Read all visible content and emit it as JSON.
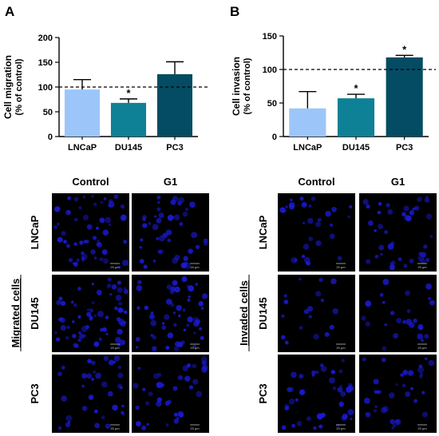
{
  "panels": {
    "a_letter": "A",
    "b_letter": "B"
  },
  "micrographs": {
    "col_control": "Control",
    "col_g1": "G1",
    "rows": [
      "LNCaP",
      "DU145",
      "PC3"
    ],
    "migrated_label": "Migrated cells",
    "invaded_label": "Invaded cells",
    "scale_label": "20 μm",
    "background_color": "#000000",
    "cell_color": "#1a1ad6"
  },
  "chart_data": [
    {
      "type": "bar",
      "ylabel_line1": "Cell migration",
      "ylabel_line2": "(% of control)",
      "categories": [
        "LNCaP",
        "DU145",
        "PC3"
      ],
      "values": [
        95,
        68,
        126
      ],
      "errors": [
        20,
        8,
        25
      ],
      "significance": [
        "",
        "*",
        ""
      ],
      "colors": [
        "#9cc6f9",
        "#0e8196",
        "#044c63"
      ],
      "ylim": [
        0,
        200
      ],
      "yticks": [
        "0",
        "50",
        "100",
        "150",
        "200"
      ],
      "reference_line": 100
    },
    {
      "type": "bar",
      "ylabel_line1": "Cell invasion",
      "ylabel_line2": "(% of control)",
      "categories": [
        "LNCaP",
        "DU145",
        "PC3"
      ],
      "values": [
        42,
        57,
        118
      ],
      "errors": [
        25,
        6,
        3
      ],
      "significance": [
        "",
        "*",
        "*"
      ],
      "colors": [
        "#9cc6f9",
        "#0e8196",
        "#044c63"
      ],
      "ylim": [
        0,
        150
      ],
      "yticks": [
        "0",
        "50",
        "100",
        "150"
      ],
      "reference_line": 100
    }
  ]
}
